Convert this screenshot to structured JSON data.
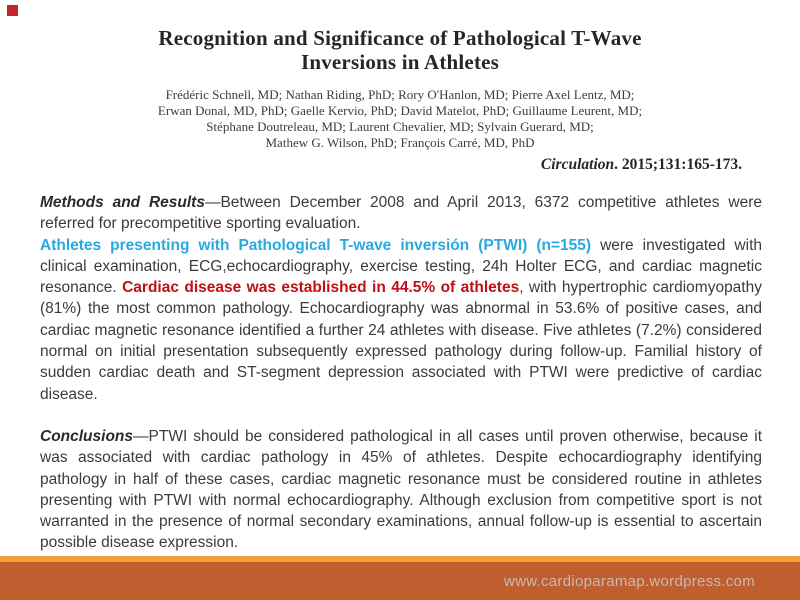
{
  "slide": {
    "accent_square_color": "#c1272d",
    "background_color": "#ffffff"
  },
  "header": {
    "title_line1": "Recognition and Significance of Pathological T-Wave",
    "title_line2": "Inversions in Athletes",
    "authors": [
      "Frédéric Schnell, MD; Nathan Riding, PhD; Rory O'Hanlon, MD; Pierre Axel Lentz, MD;",
      "Erwan Donal, MD, PhD; Gaelle Kervio, PhD; David Matelot, PhD; Guillaume Leurent, MD;",
      "Stéphane Doutreleau, MD; Laurent Chevalier, MD; Sylvain Guerard, MD;",
      "Mathew G. Wilson, PhD; François Carré, MD, PhD"
    ],
    "citation_journal": "Circulation",
    "citation_rest": ". 2015;131:165-173."
  },
  "abstract": {
    "methods_label": "Methods and Results",
    "methods_text": "—Between December 2008 and April 2013, 6372 competitive athletes were referred for precompetitive sporting evaluation.",
    "highlight_blue": "Athletes presenting with Pathological T-wave inversión (PTWI) (n=155)",
    "after_blue": " were investigated with clinical examination, ECG,echocardiography, exercise testing, 24h Holter ECG, and cardiac magnetic resonance. ",
    "highlight_red": "Cardiac disease was established in 44.5% of athletes",
    "after_red": ", with hypertrophic cardiomyopathy (81%) the most common pathology. Echocardiography was abnormal in 53.6% of positive cases, and cardiac magnetic resonance identified a further 24 athletes with disease. Five athletes (7.2%) considered normal on initial presentation subsequently expressed pathology during follow-up. Familial history of sudden cardiac death and ST-segment depression associated with PTWI were predictive of cardiac disease.",
    "conclusions_label": "Conclusions",
    "conclusions_text": "—PTWI should be considered pathological in all cases until proven otherwise, because it was associated with cardiac pathology in 45% of athletes. Despite echocardiography identifying pathology in half of these cases, cardiac magnetic resonance must be considered routine in athletes presenting with PTWI with normal echocardiography. Although exclusion from competitive sport is not warranted in the presence of normal secondary examinations, annual follow-up is essential to ascertain possible disease expression."
  },
  "colors": {
    "highlight_blue": "#29a9e0",
    "highlight_red": "#c01015",
    "footer_strip": "#f0a236",
    "footer_bar": "#c05e2f",
    "footer_url_text": "#c6bab2",
    "body_text": "#3b3b3b",
    "title_text": "#262626"
  },
  "footer": {
    "url": "www.cardioparamap.wordpress.com"
  }
}
